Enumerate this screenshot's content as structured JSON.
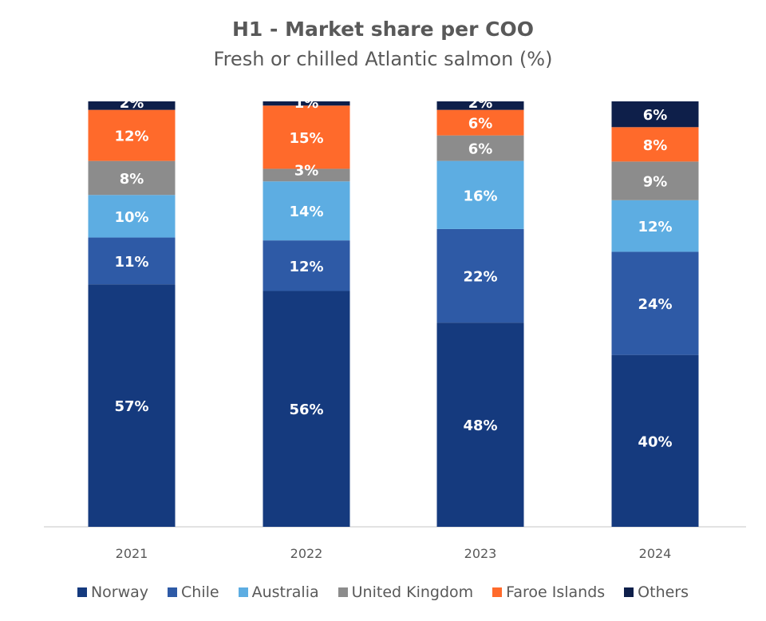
{
  "chart_data": {
    "type": "bar",
    "stacked": true,
    "title": "H1 - Market share per COO",
    "subtitle": "Fresh or chilled Atlantic salmon (%)",
    "xlabel": "",
    "ylabel": "",
    "ylim": [
      0,
      100
    ],
    "grid": false,
    "legend_position": "bottom",
    "categories": [
      "2021",
      "2022",
      "2023",
      "2024"
    ],
    "series": [
      {
        "name": "Norway",
        "color": "#153A7E",
        "values": [
          57,
          56,
          48,
          40
        ]
      },
      {
        "name": "Chile",
        "color": "#2E5AA6",
        "values": [
          11,
          12,
          22,
          24
        ]
      },
      {
        "name": "Australia",
        "color": "#5DADE2",
        "values": [
          10,
          14,
          16,
          12
        ]
      },
      {
        "name": "United Kingdom",
        "color": "#8C8C8C",
        "values": [
          8,
          3,
          6,
          9
        ]
      },
      {
        "name": "Faroe Islands",
        "color": "#FF6A2B",
        "values": [
          12,
          15,
          6,
          8
        ]
      },
      {
        "name": "Others",
        "color": "#0E1F4A",
        "values": [
          2,
          1,
          2,
          6
        ]
      }
    ],
    "value_suffix": "%"
  }
}
